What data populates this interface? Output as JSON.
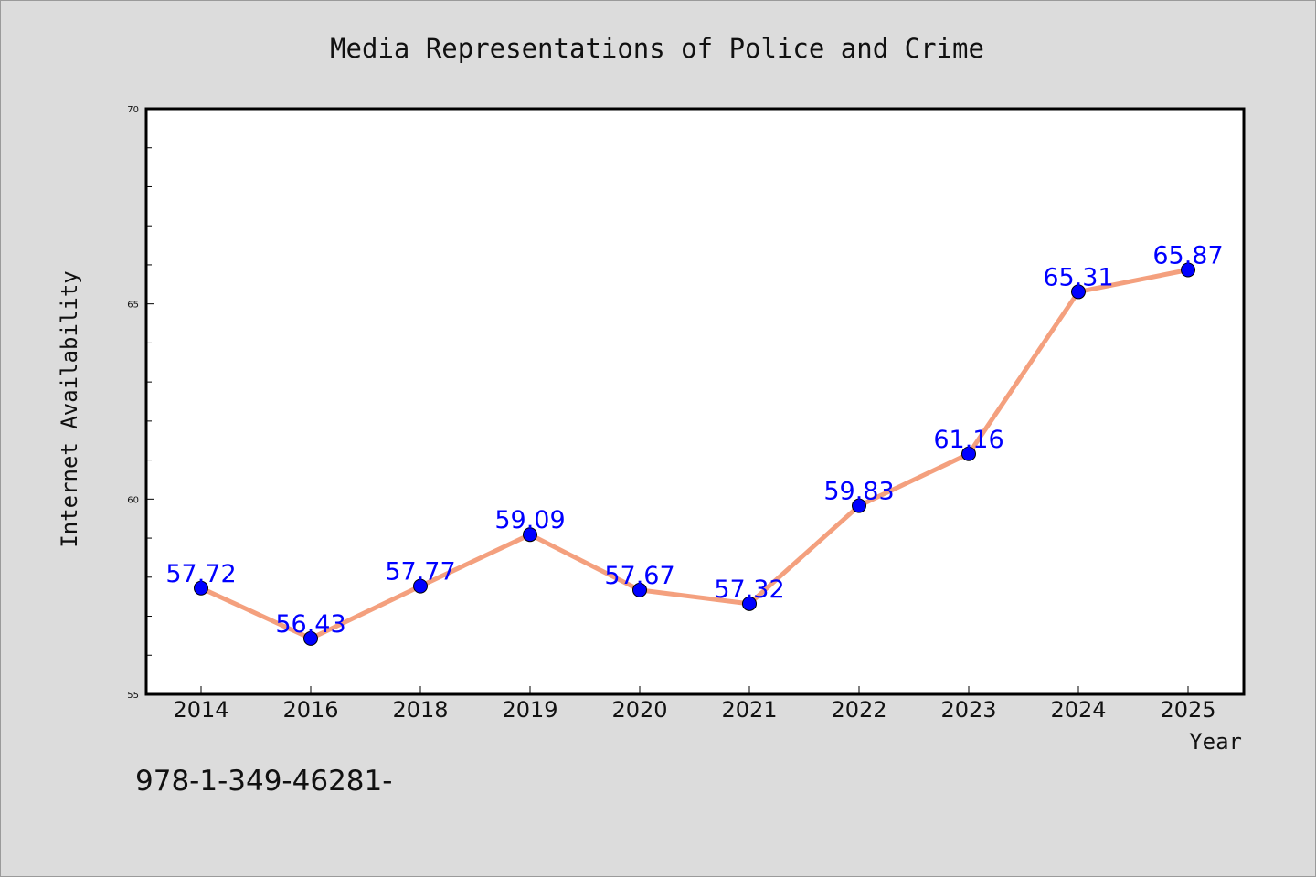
{
  "chart_data": {
    "type": "line",
    "title": "Media Representations of Police and Crime",
    "xlabel": "Year",
    "ylabel": "Internet Availability",
    "categories": [
      "2014",
      "2016",
      "2018",
      "2019",
      "2020",
      "2021",
      "2022",
      "2023",
      "2024",
      "2025"
    ],
    "series": [
      {
        "values": [
          57.72,
          56.43,
          57.77,
          59.09,
          57.67,
          57.32,
          59.83,
          61.16,
          65.31,
          65.87
        ],
        "labels": [
          "57.72",
          "56.43",
          "57.77",
          "59.09",
          "57.67",
          "57.32",
          "59.83",
          "61.16",
          "65.31",
          "65.87"
        ]
      }
    ],
    "ylim": [
      55,
      70
    ],
    "yticks": [
      55,
      60,
      65,
      70
    ],
    "ytick_labels": [
      "55",
      "60",
      "65",
      "70"
    ],
    "grid": false,
    "colors": {
      "line": "#f4a07e",
      "marker": "#0000ff",
      "data_label": "#0000ff",
      "background": "#dcdcdc",
      "plot_area": "#ffffff"
    }
  },
  "footer": {
    "isbn_text": "978-1-349-46281-"
  }
}
